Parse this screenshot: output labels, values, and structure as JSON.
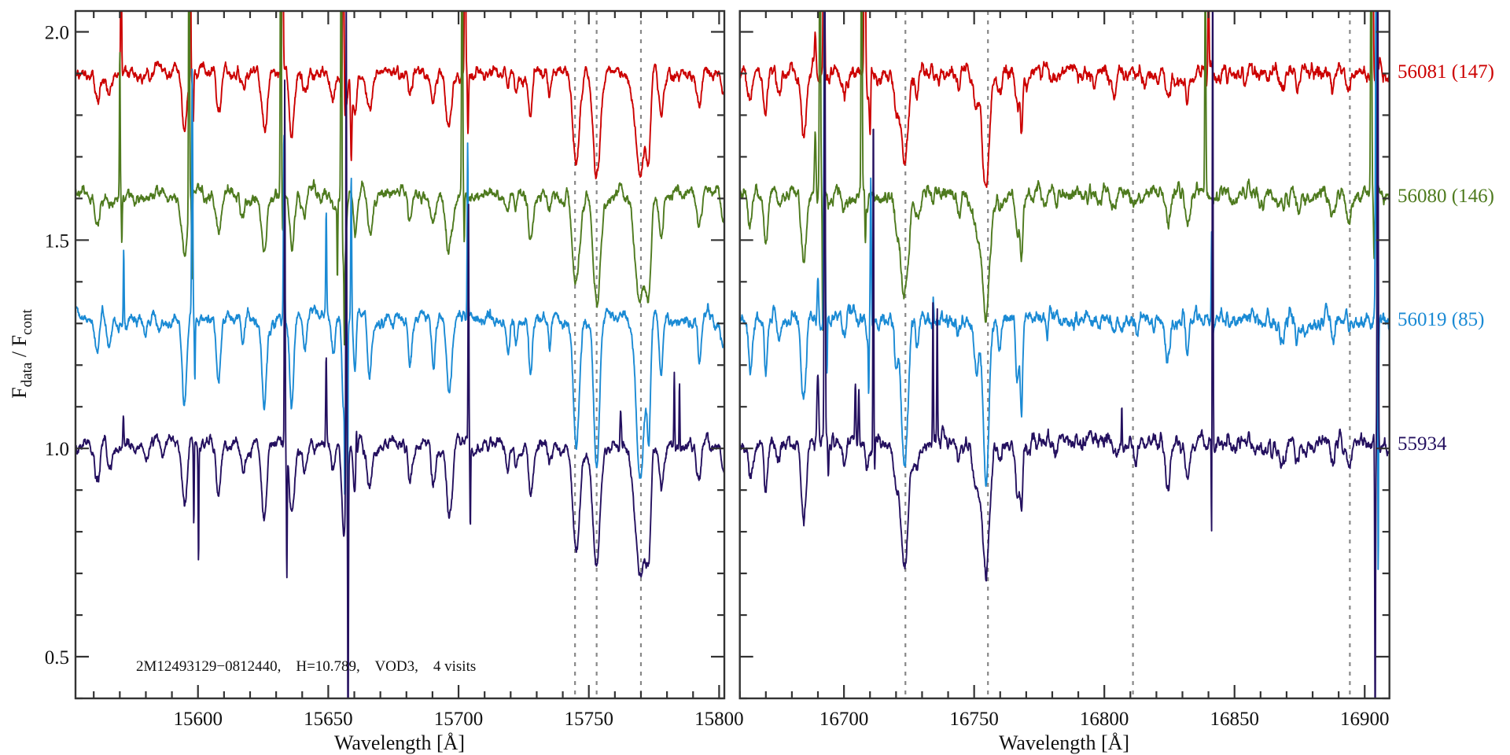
{
  "chart_data": {
    "type": "line",
    "ylabel_main": "F",
    "ylabel_sub1": "data",
    "ylabel_sep": " / F",
    "ylabel_sub2": "cont",
    "xlabel": "Wavelength [Å]",
    "ylim": [
      0.4,
      2.05
    ],
    "yticks_major": [
      0.5,
      1.0,
      1.5,
      2.0
    ],
    "ytick_labels": [
      "0.5",
      "1.0",
      "1.5",
      "2.0"
    ],
    "ytick_minor_step": 0.1,
    "annotation": "2M12493129−0812440,    H=10.789,    VOD3,    4 visits",
    "series": [
      {
        "label": "56081 (147)",
        "color": "#cc0000",
        "continuum": 1.9,
        "depth_scale": 0.8,
        "width_scale": 1.0
      },
      {
        "label": "56080 (146)",
        "color": "#4e7a1e",
        "continuum": 1.61,
        "depth_scale": 0.85,
        "width_scale": 1.1
      },
      {
        "label": "56019 (85)",
        "color": "#1a8ad4",
        "continuum": 1.31,
        "depth_scale": 1.2,
        "width_scale": 0.85
      },
      {
        "label": "55934",
        "color": "#24105f",
        "continuum": 1.01,
        "depth_scale": 1.0,
        "width_scale": 1.05
      }
    ],
    "panels": [
      {
        "name": "left",
        "xlim": [
          15553,
          15802
        ],
        "xticks_major": [
          15600,
          15650,
          15700,
          15750,
          15800
        ],
        "xtick_labels": [
          "15600",
          "15650",
          "15700",
          "15750",
          "15800"
        ],
        "xtick_minor_step": 10,
        "reference_lines": [
          15744.7,
          15753.0,
          15770.0
        ],
        "absorption_lines": [
          [
            15561.5,
            0.08,
            1.0
          ],
          [
            15566,
            0.05,
            0.8
          ],
          [
            15580,
            0.03,
            1.0
          ],
          [
            15594.8,
            0.16,
            1.0
          ],
          [
            15607.8,
            0.11,
            0.9
          ],
          [
            15617.3,
            0.06,
            0.8
          ],
          [
            15625.4,
            0.18,
            1.0
          ],
          [
            15636,
            0.17,
            0.9
          ],
          [
            15641,
            0.06,
            0.7
          ],
          [
            15652,
            0.06,
            0.8
          ],
          [
            15656,
            0.2,
            0.8
          ],
          [
            15660.3,
            0.1,
            0.6
          ],
          [
            15665.8,
            0.11,
            0.9
          ],
          [
            15681.3,
            0.08,
            0.8
          ],
          [
            15690.4,
            0.09,
            0.9
          ],
          [
            15696.4,
            0.15,
            1.1
          ],
          [
            15719,
            0.07,
            0.7
          ],
          [
            15722,
            0.05,
            0.6
          ],
          [
            15727.6,
            0.12,
            0.8
          ],
          [
            15735,
            0.05,
            0.7
          ],
          [
            15745.2,
            0.25,
            1.3
          ],
          [
            15753,
            0.3,
            1.3
          ],
          [
            15769.8,
            0.32,
            1.8
          ],
          [
            15773,
            0.2,
            0.8
          ],
          [
            15777.8,
            0.1,
            0.8
          ],
          [
            15792.4,
            0.09,
            0.8
          ],
          [
            15801.5,
            0.05,
            0.8
          ]
        ],
        "sky_features": [
          [
            [
              15570.5,
              0.35,
              0.2
            ],
            [
              15597,
              0.6,
              0.2
            ],
            [
              15598.2,
              -0.12,
              0.2
            ],
            [
              15632.5,
              0.6,
              0.2
            ],
            [
              15655.8,
              0.6,
              0.25
            ],
            [
              15658.8,
              -0.18,
              0.25
            ],
            [
              15702.5,
              0.6,
              0.2
            ],
            [
              15703.6,
              -0.15,
              0.2
            ]
          ],
          [
            [
              15570,
              0.36,
              0.15
            ],
            [
              15570.8,
              -0.1,
              0.15
            ],
            [
              15596.6,
              1.0,
              0.18
            ],
            [
              15597.7,
              -0.22,
              0.15
            ],
            [
              15631.8,
              1.0,
              0.18
            ],
            [
              15632.5,
              -0.1,
              0.15
            ],
            [
              15653.5,
              -0.18,
              0.15
            ],
            [
              15655,
              1.0,
              0.2
            ],
            [
              15656.2,
              -0.2,
              0.15
            ],
            [
              15701.4,
              1.0,
              0.18
            ],
            [
              15702.2,
              -0.12,
              0.15
            ]
          ],
          [
            [
              15571.5,
              0.18,
              0.15
            ],
            [
              15597.8,
              0.6,
              0.2
            ],
            [
              15598.8,
              -0.15,
              0.15
            ],
            [
              15633,
              0.43,
              0.2
            ],
            [
              15649.2,
              0.24,
              0.18
            ],
            [
              15656.4,
              -0.25,
              0.15
            ],
            [
              15657.4,
              -0.5,
              0.15
            ],
            [
              15658.8,
              0.35,
              0.18
            ],
            [
              15703.5,
              0.4,
              0.18
            ]
          ],
          [
            [
              15571.4,
              0.08,
              0.2
            ],
            [
              15598.4,
              -0.2,
              0.15
            ],
            [
              15600.2,
              -0.28,
              0.15
            ],
            [
              15633.3,
              0.9,
              0.15
            ],
            [
              15634.1,
              -0.3,
              0.15
            ],
            [
              15649.2,
              0.22,
              0.2
            ],
            [
              15656.9,
              1.2,
              0.15
            ],
            [
              15657.6,
              -0.7,
              0.15
            ],
            [
              15660.8,
              0.1,
              0.2
            ],
            [
              15703.8,
              0.6,
              0.15
            ],
            [
              15704.5,
              -0.2,
              0.15
            ],
            [
              15762.2,
              0.08,
              0.25
            ],
            [
              15782.8,
              0.17,
              0.15
            ],
            [
              15784.8,
              0.17,
              0.15
            ]
          ]
        ]
      },
      {
        "name": "right",
        "xlim": [
          16660,
          16909.5
        ],
        "xticks_major": [
          16700,
          16750,
          16800,
          16850,
          16900
        ],
        "xtick_labels": [
          "16700",
          "16750",
          "16800",
          "16850",
          "16900"
        ],
        "xtick_minor_step": 10,
        "reference_lines": [
          16723.6,
          16755.3,
          16811.0,
          16894.3
        ],
        "absorption_lines": [
          [
            16664,
            0.09,
            0.8
          ],
          [
            16669.9,
            0.12,
            0.6
          ],
          [
            16675,
            0.04,
            0.8
          ],
          [
            16684.6,
            0.17,
            1.0
          ],
          [
            16700,
            0.04,
            0.8
          ],
          [
            16709,
            0.05,
            0.6
          ],
          [
            16720,
            0.08,
            0.8
          ],
          [
            16723.2,
            0.29,
            1.4
          ],
          [
            16728,
            0.06,
            0.8
          ],
          [
            16744,
            0.04,
            0.8
          ],
          [
            16751,
            0.1,
            1.2
          ],
          [
            16754.6,
            0.33,
            1.3
          ],
          [
            16760,
            0.05,
            0.8
          ],
          [
            16766.6,
            0.12,
            0.7
          ],
          [
            16768.2,
            0.17,
            0.5
          ],
          [
            16803.7,
            0.04,
            0.7
          ],
          [
            16812,
            0.03,
            0.6
          ],
          [
            16824.4,
            0.09,
            0.9
          ],
          [
            16832,
            0.07,
            0.7
          ],
          [
            16868,
            0.05,
            1.2
          ],
          [
            16874,
            0.04,
            0.6
          ],
          [
            16888,
            0.05,
            0.8
          ],
          [
            16894,
            0.04,
            0.6
          ]
        ],
        "sky_features": [
          [
            [
              16689,
              0.1,
              0.3
            ],
            [
              16692.3,
              0.6,
              0.25
            ],
            [
              16708,
              0.6,
              0.25
            ],
            [
              16710,
              -0.15,
              0.25
            ],
            [
              16840,
              0.25,
              0.2
            ],
            [
              16903,
              0.6,
              0.25
            ],
            [
              16904.5,
              -0.12,
              0.2
            ]
          ],
          [
            [
              16689,
              0.15,
              0.3
            ],
            [
              16690.8,
              0.9,
              0.2
            ],
            [
              16691.8,
              -0.35,
              0.15
            ],
            [
              16706.8,
              0.9,
              0.2
            ],
            [
              16708.2,
              -0.12,
              0.2
            ],
            [
              16838.8,
              0.55,
              0.2
            ],
            [
              16902.5,
              0.9,
              0.2
            ],
            [
              16903.6,
              -0.15,
              0.2
            ]
          ],
          [
            [
              16690,
              0.12,
              0.3
            ],
            [
              16692.5,
              0.9,
              0.2
            ],
            [
              16693.5,
              -0.15,
              0.15
            ],
            [
              16709.5,
              -0.15,
              0.15
            ],
            [
              16710.3,
              0.35,
              0.2
            ],
            [
              16734.3,
              0.08,
              0.2
            ],
            [
              16841.2,
              0.21,
              0.15
            ],
            [
              16904.3,
              0.8,
              0.2
            ],
            [
              16905.2,
              -0.6,
              0.15
            ]
          ],
          [
            [
              16690,
              0.18,
              0.35
            ],
            [
              16692.6,
              1.2,
              0.2
            ],
            [
              16694,
              -0.08,
              0.2
            ],
            [
              16704.4,
              0.14,
              0.2
            ],
            [
              16705.7,
              0.12,
              0.2
            ],
            [
              16711.3,
              0.85,
              0.15
            ],
            [
              16711.8,
              -0.08,
              0.2
            ],
            [
              16734.2,
              0.35,
              0.15
            ],
            [
              16735.8,
              0.33,
              0.15
            ],
            [
              16806.7,
              0.1,
              0.15
            ],
            [
              16841.2,
              -0.25,
              0.12
            ],
            [
              16841.6,
              1.2,
              0.15
            ],
            [
              16904,
              -0.7,
              0.15
            ],
            [
              16905,
              1.2,
              0.2
            ]
          ]
        ]
      }
    ]
  }
}
